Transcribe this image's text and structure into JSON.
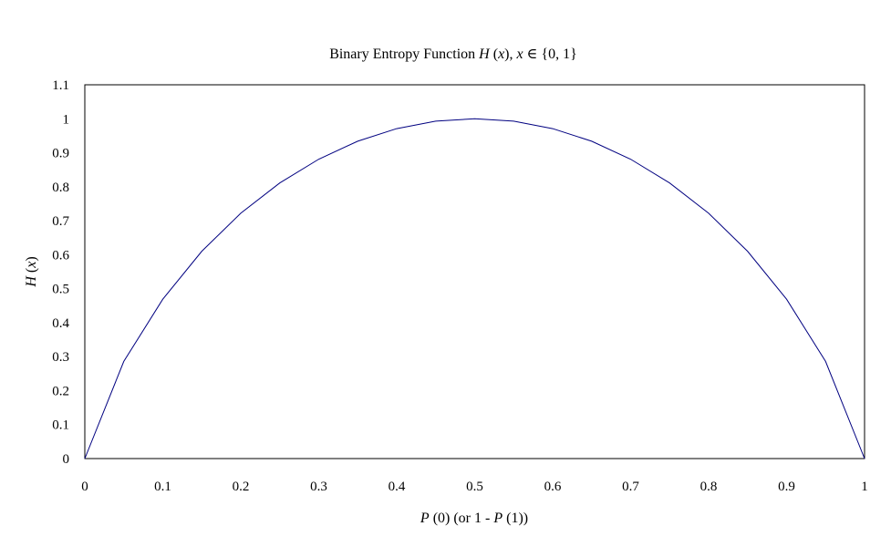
{
  "chart_data": {
    "type": "line",
    "title_parts": [
      "Binary Entropy Function ",
      "H",
      " (",
      "x",
      "), ",
      "x",
      "  ∈ {0, 1}"
    ],
    "xlabel_parts": [
      "P",
      " (0) (or 1 - ",
      "P",
      " (1))"
    ],
    "ylabel_parts": [
      "H",
      " (",
      "x",
      ")"
    ],
    "xlim": [
      0,
      1
    ],
    "ylim": [
      0,
      1.1
    ],
    "x_ticks": [
      "0",
      "0.1",
      "0.2",
      "0.3",
      "0.4",
      "0.5",
      "0.6",
      "0.7",
      "0.8",
      "0.9",
      "1"
    ],
    "y_ticks": [
      "0",
      "0.1",
      "0.2",
      "0.3",
      "0.4",
      "0.5",
      "0.6",
      "0.7",
      "0.8",
      "0.9",
      "1",
      "1.1"
    ],
    "grid": false,
    "line_color": "#000080",
    "series": [
      {
        "x": [
          0,
          0.05,
          0.1,
          0.15,
          0.2,
          0.25,
          0.3,
          0.35,
          0.4,
          0.45,
          0.5,
          0.55,
          0.6,
          0.65,
          0.7,
          0.75,
          0.8,
          0.85,
          0.9,
          0.95,
          1
        ],
        "values": [
          0,
          0.286,
          0.469,
          0.61,
          0.722,
          0.811,
          0.881,
          0.934,
          0.971,
          0.993,
          1,
          0.993,
          0.971,
          0.934,
          0.881,
          0.811,
          0.722,
          0.61,
          0.469,
          0.286,
          0
        ]
      }
    ]
  }
}
